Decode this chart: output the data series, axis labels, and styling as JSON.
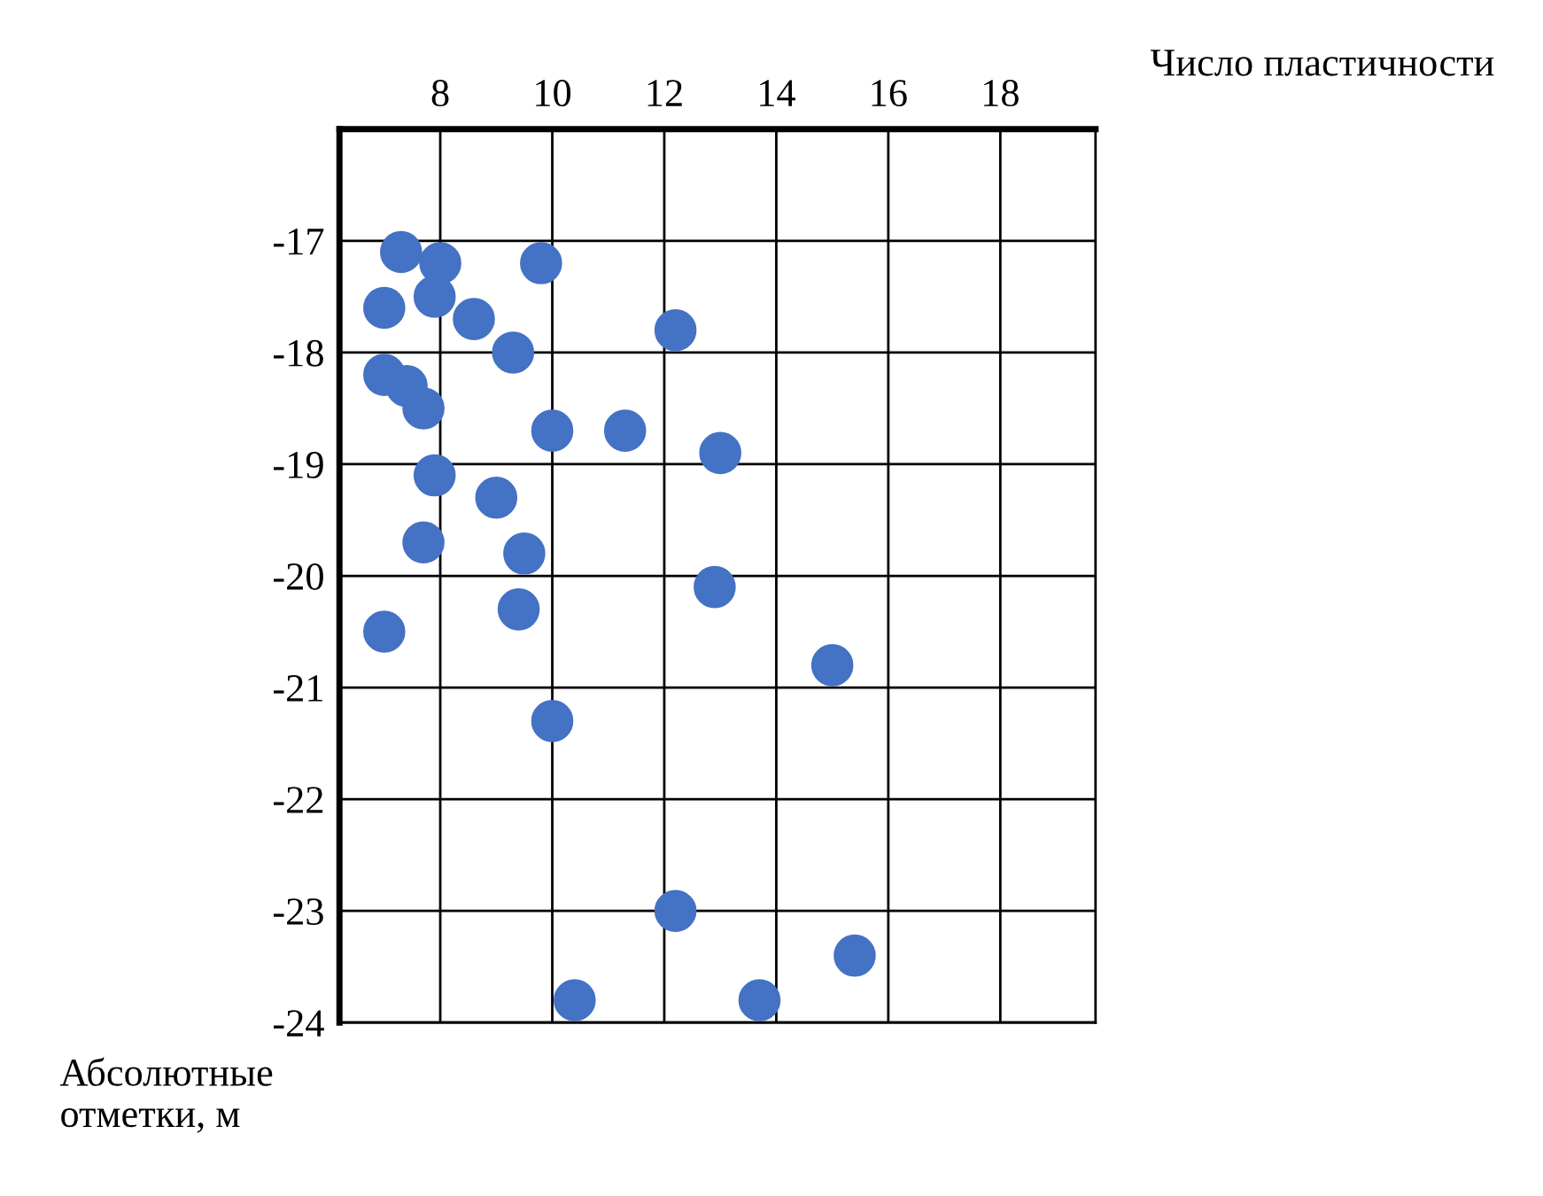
{
  "chart_data": {
    "type": "scatter",
    "xlabel": "Число пластичности",
    "ylabel": "Абсолютные\nотметки, м",
    "x": [
      7.3,
      8.0,
      9.8,
      7.0,
      7.9,
      8.6,
      12.2,
      9.3,
      7.0,
      7.4,
      7.7,
      10.0,
      11.3,
      13.0,
      7.9,
      9.0,
      7.7,
      9.5,
      12.9,
      9.4,
      7.0,
      15.0,
      10.0,
      12.2,
      15.4,
      10.4,
      13.7
    ],
    "values": [
      -17.1,
      -17.2,
      -17.2,
      -17.6,
      -17.5,
      -17.7,
      -17.8,
      -18.0,
      -18.2,
      -18.3,
      -18.5,
      -18.7,
      -18.7,
      -18.9,
      -19.1,
      -19.3,
      -19.7,
      -19.8,
      -20.1,
      -20.3,
      -20.5,
      -20.8,
      -21.3,
      -23.0,
      -23.4,
      -23.8,
      -23.8
    ],
    "color": "#4472c4",
    "marker": "circle",
    "xlim": [
      6.2,
      19.7
    ],
    "ylim": [
      -24,
      -16
    ],
    "xticks": [
      8,
      10,
      12,
      14,
      16,
      18
    ],
    "yticks": [
      -17,
      -18,
      -19,
      -20,
      -21,
      -22,
      -23,
      -24
    ],
    "grid": true
  }
}
